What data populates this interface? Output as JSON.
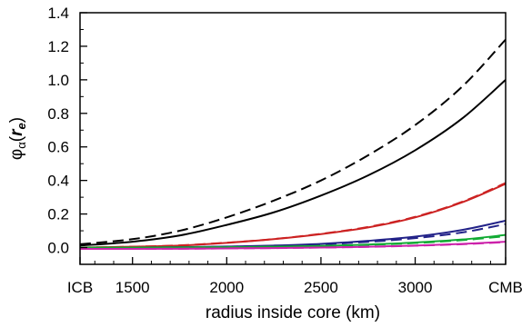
{
  "chart_data": {
    "type": "line",
    "xlabel": "radius inside core (km)",
    "ylabel": "φα(re)",
    "ylabel_parts": {
      "base": "φ",
      "sub": "α",
      "open": "(",
      "var": "r",
      "var_sub": "e",
      "close": ")"
    },
    "xlim": [
      1221.5,
      3480
    ],
    "ylim": [
      -0.1,
      1.4
    ],
    "grid": false,
    "legend": "none",
    "x_ticks": [
      {
        "value": 1221.5,
        "label": "ICB"
      },
      {
        "value": 1500,
        "label": "1500"
      },
      {
        "value": 2000,
        "label": "2000"
      },
      {
        "value": 2500,
        "label": "2500"
      },
      {
        "value": 3000,
        "label": "3000"
      },
      {
        "value": 3480,
        "label": "CMB"
      }
    ],
    "y_ticks": [
      {
        "value": 0.0,
        "label": "0.0"
      },
      {
        "value": 0.2,
        "label": "0.2"
      },
      {
        "value": 0.4,
        "label": "0.4"
      },
      {
        "value": 0.6,
        "label": "0.6"
      },
      {
        "value": 0.8,
        "label": "0.8"
      },
      {
        "value": 1.0,
        "label": "1.0"
      },
      {
        "value": 1.2,
        "label": "1.2"
      },
      {
        "value": 1.4,
        "label": "1.4"
      }
    ],
    "series": [
      {
        "color": "#000000",
        "dash": "solid",
        "x": [
          1221.5,
          1500,
          1750,
          2000,
          2250,
          2500,
          2750,
          3000,
          3250,
          3480
        ],
        "y": [
          0.012,
          0.035,
          0.072,
          0.135,
          0.21,
          0.31,
          0.43,
          0.58,
          0.77,
          1.0
        ]
      },
      {
        "color": "#000000",
        "dash": "dashed",
        "x": [
          1221.5,
          1500,
          1750,
          2000,
          2250,
          2500,
          2750,
          3000,
          3250,
          3480
        ],
        "y": [
          0.02,
          0.05,
          0.1,
          0.18,
          0.28,
          0.4,
          0.55,
          0.73,
          0.96,
          1.24
        ]
      },
      {
        "color": "#cc2222",
        "dash": "solid",
        "x": [
          1221.5,
          1500,
          1750,
          2000,
          2250,
          2500,
          2750,
          3000,
          3250,
          3480
        ],
        "y": [
          0.0,
          0.005,
          0.012,
          0.028,
          0.05,
          0.08,
          0.12,
          0.18,
          0.27,
          0.38
        ]
      },
      {
        "color": "#cc2222",
        "dash": "dashed",
        "x": [
          1221.5,
          1500,
          1750,
          2000,
          2250,
          2500,
          2750,
          3000,
          3250,
          3480
        ],
        "y": [
          0.0,
          0.005,
          0.013,
          0.029,
          0.051,
          0.082,
          0.123,
          0.183,
          0.273,
          0.385
        ]
      },
      {
        "color": "#222288",
        "dash": "solid",
        "x": [
          1221.5,
          1500,
          1750,
          2000,
          2250,
          2500,
          2750,
          3000,
          3250,
          3480
        ],
        "y": [
          0.0,
          0.0,
          0.002,
          0.006,
          0.012,
          0.022,
          0.04,
          0.065,
          0.105,
          0.16
        ]
      },
      {
        "color": "#222288",
        "dash": "dashed",
        "x": [
          1221.5,
          1500,
          1750,
          2000,
          2250,
          2500,
          2750,
          3000,
          3250,
          3480
        ],
        "y": [
          0.0,
          0.0,
          0.002,
          0.005,
          0.01,
          0.019,
          0.034,
          0.056,
          0.09,
          0.14
        ]
      },
      {
        "color": "#11aa33",
        "dash": "solid",
        "x": [
          1221.5,
          1500,
          1750,
          2000,
          2250,
          2500,
          2750,
          3000,
          3250,
          3480
        ],
        "y": [
          0.0,
          0.0,
          0.001,
          0.002,
          0.005,
          0.01,
          0.018,
          0.03,
          0.048,
          0.075
        ]
      },
      {
        "color": "#11aa33",
        "dash": "dashed",
        "x": [
          1221.5,
          1500,
          1750,
          2000,
          2250,
          2500,
          2750,
          3000,
          3250,
          3480
        ],
        "y": [
          0.0,
          0.0,
          0.001,
          0.002,
          0.005,
          0.009,
          0.016,
          0.027,
          0.044,
          0.068
        ]
      },
      {
        "color": "#cc22aa",
        "dash": "solid",
        "x": [
          1221.5,
          1500,
          1750,
          2000,
          2250,
          2500,
          2750,
          3000,
          3250,
          3480
        ],
        "y": [
          -0.008,
          -0.008,
          -0.007,
          -0.005,
          -0.003,
          0.0,
          0.005,
          0.012,
          0.022,
          0.035
        ]
      },
      {
        "color": "#cc22aa",
        "dash": "dashed",
        "x": [
          1221.5,
          1500,
          1750,
          2000,
          2250,
          2500,
          2750,
          3000,
          3250,
          3480
        ],
        "y": [
          -0.008,
          -0.008,
          -0.007,
          -0.005,
          -0.003,
          0.0,
          0.004,
          0.011,
          0.02,
          0.032
        ]
      }
    ]
  }
}
